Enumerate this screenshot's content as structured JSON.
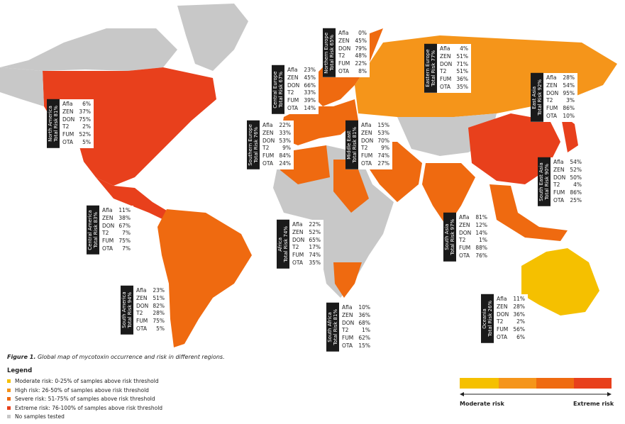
{
  "caption": {
    "label": "Figure 1.",
    "text": "Global map of mycotoxin occurrence and risk in different regions."
  },
  "regions": [
    {
      "name": "North America",
      "total": "Total Risk 81%",
      "rows": [
        [
          "Afla",
          "6%"
        ],
        [
          "ZEN",
          "37%"
        ],
        [
          "DON",
          "75%"
        ],
        [
          "T2",
          "2%"
        ],
        [
          "FUM",
          "52%"
        ],
        [
          "OTA",
          "5%"
        ]
      ]
    },
    {
      "name": "Central Europe",
      "total": "Total Risk 67%",
      "rows": [
        [
          "Afla",
          "23%"
        ],
        [
          "ZEN",
          "45%"
        ],
        [
          "DON",
          "66%"
        ],
        [
          "T2",
          "33%"
        ],
        [
          "FUM",
          "39%"
        ],
        [
          "OTA",
          "14%"
        ]
      ]
    },
    {
      "name": "Northern Europe",
      "total": "Total Risk 65%",
      "rows": [
        [
          "Afla",
          "0%"
        ],
        [
          "ZEN",
          "45%"
        ],
        [
          "DON",
          "79%"
        ],
        [
          "T2",
          "48%"
        ],
        [
          "FUM",
          "22%"
        ],
        [
          "OTA",
          "8%"
        ]
      ]
    },
    {
      "name": "Eastern Europe",
      "total": "Total Risk 77%",
      "rows": [
        [
          "Afla",
          "4%"
        ],
        [
          "ZEN",
          "51%"
        ],
        [
          "DON",
          "71%"
        ],
        [
          "T2",
          "51%"
        ],
        [
          "FUM",
          "36%"
        ],
        [
          "OTA",
          "35%"
        ]
      ]
    },
    {
      "name": "East Asia",
      "total": "Total Risk 92%",
      "rows": [
        [
          "Afla",
          "28%"
        ],
        [
          "ZEN",
          "54%"
        ],
        [
          "DON",
          "95%"
        ],
        [
          "T2",
          "3%"
        ],
        [
          "FUM",
          "86%"
        ],
        [
          "OTA",
          "10%"
        ]
      ]
    },
    {
      "name": "Southern Europe",
      "total": "Total Risk 76%",
      "rows": [
        [
          "Afla",
          "22%"
        ],
        [
          "ZEN",
          "33%"
        ],
        [
          "DON",
          "53%"
        ],
        [
          "T2",
          "9%"
        ],
        [
          "FUM",
          "84%"
        ],
        [
          "OTA",
          "24%"
        ]
      ]
    },
    {
      "name": "Middle East",
      "total": "Total Risk 81%",
      "rows": [
        [
          "Afla",
          "15%"
        ],
        [
          "ZEN",
          "53%"
        ],
        [
          "DON",
          "70%"
        ],
        [
          "T2",
          "9%"
        ],
        [
          "FUM",
          "74%"
        ],
        [
          "OTA",
          "27%"
        ]
      ]
    },
    {
      "name": "South East Asia",
      "total": "Total Risk 90%",
      "rows": [
        [
          "Afla",
          "54%"
        ],
        [
          "ZEN",
          "52%"
        ],
        [
          "DON",
          "50%"
        ],
        [
          "T2",
          "4%"
        ],
        [
          "FUM",
          "86%"
        ],
        [
          "OTA",
          "25%"
        ]
      ]
    },
    {
      "name": "Central America",
      "total": "Total Risk 83%",
      "rows": [
        [
          "Afla",
          "11%"
        ],
        [
          "ZEN",
          "38%"
        ],
        [
          "DON",
          "67%"
        ],
        [
          "T2",
          "7%"
        ],
        [
          "FUM",
          "75%"
        ],
        [
          "OTA",
          "7%"
        ]
      ]
    },
    {
      "name": "Africa",
      "total": "Total Risk 74%",
      "rows": [
        [
          "Afla",
          "22%"
        ],
        [
          "ZEN",
          "52%"
        ],
        [
          "DON",
          "65%"
        ],
        [
          "T2",
          "17%"
        ],
        [
          "FUM",
          "74%"
        ],
        [
          "OTA",
          "35%"
        ]
      ]
    },
    {
      "name": "South Asia",
      "total": "Total Risk 97%",
      "rows": [
        [
          "Afla",
          "81%"
        ],
        [
          "ZEN",
          "12%"
        ],
        [
          "DON",
          "14%"
        ],
        [
          "T2",
          "1%"
        ],
        [
          "FUM",
          "88%"
        ],
        [
          "OTA",
          "76%"
        ]
      ]
    },
    {
      "name": "South America",
      "total": "Total Risk 94%",
      "rows": [
        [
          "Afla",
          "23%"
        ],
        [
          "ZEN",
          "51%"
        ],
        [
          "DON",
          "82%"
        ],
        [
          "T2",
          "28%"
        ],
        [
          "FUM",
          "75%"
        ],
        [
          "OTA",
          "5%"
        ]
      ]
    },
    {
      "name": "South Africa",
      "total": "Total Risk 81%",
      "rows": [
        [
          "Afla",
          "10%"
        ],
        [
          "ZEN",
          "36%"
        ],
        [
          "DON",
          "68%"
        ],
        [
          "T2",
          "1%"
        ],
        [
          "FUM",
          "62%"
        ],
        [
          "OTA",
          "15%"
        ]
      ]
    },
    {
      "name": "Oceania",
      "total": "Total Risk 26%",
      "rows": [
        [
          "Afla",
          "11%"
        ],
        [
          "ZEN",
          "28%"
        ],
        [
          "DON",
          "36%"
        ],
        [
          "T2",
          "2%"
        ],
        [
          "FUM",
          "56%"
        ],
        [
          "OTA",
          "6%"
        ]
      ]
    }
  ],
  "legend": {
    "title": "Legend",
    "items": [
      {
        "label": "Moderate risk: 0-25% of samples above risk threshold",
        "color": "#f5c000"
      },
      {
        "label": "High risk: 26-50% of samples above risk threshold",
        "color": "#f5951a"
      },
      {
        "label": "Severe risk: 51-75% of samples above risk threshold",
        "color": "#ef6a10"
      },
      {
        "label": "Extreme risk: 76-100% of samples above risk threshold",
        "color": "#e8401c"
      },
      {
        "label": "No samples tested",
        "color": "#c8c8c8"
      }
    ]
  },
  "scale": {
    "low": "Moderate risk",
    "high": "Extreme risk"
  }
}
